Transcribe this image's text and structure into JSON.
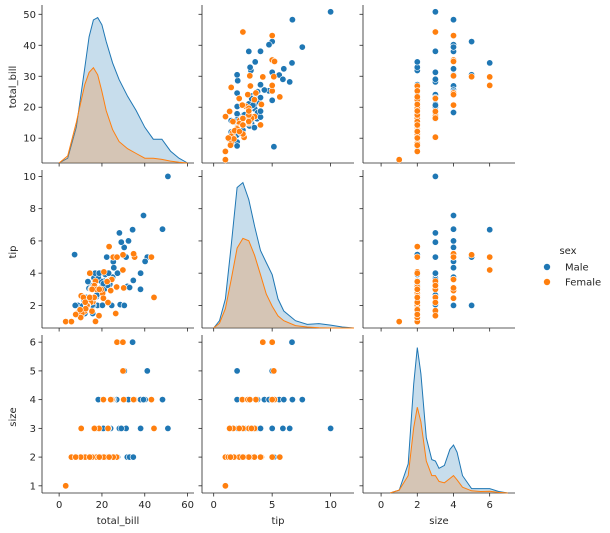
{
  "chart_data": {
    "type": "pairplot",
    "variables": [
      "total_bill",
      "tip",
      "size"
    ],
    "hue": "sex",
    "legend": {
      "title": "sex",
      "placement": "right",
      "entries": [
        {
          "label": "Male",
          "color": "#1f77b4"
        },
        {
          "label": "Female",
          "color": "#ff7f0e"
        }
      ]
    },
    "axes": {
      "total_bill": {
        "label": "total_bill",
        "range": [
          -8,
          63
        ],
        "ticks": [
          0,
          20,
          40,
          60
        ],
        "row_range": [
          2,
          53
        ],
        "row_ticks": [
          10,
          20,
          30,
          40,
          50
        ]
      },
      "tip": {
        "label": "tip",
        "range": [
          -1,
          12
        ],
        "ticks": [
          0,
          5,
          10
        ],
        "row_range": [
          0.6,
          10.4
        ],
        "row_ticks": [
          2,
          4,
          6,
          8,
          10
        ]
      },
      "size": {
        "label": "size",
        "range": [
          -1,
          7.4
        ],
        "ticks": [
          0,
          2,
          4,
          6
        ],
        "row_range": [
          0.75,
          6.25
        ],
        "row_ticks": [
          1,
          2,
          3,
          4,
          5,
          6
        ]
      }
    },
    "grid": false,
    "series": [
      {
        "name": "Male",
        "color": "#1f77b4",
        "points": [
          [
            10.34,
            1.66,
            3
          ],
          [
            21.01,
            3.5,
            3
          ],
          [
            23.68,
            3.31,
            2
          ],
          [
            25.29,
            4.71,
            4
          ],
          [
            8.77,
            2.0,
            2
          ],
          [
            26.88,
            3.12,
            4
          ],
          [
            15.04,
            1.96,
            2
          ],
          [
            14.78,
            3.23,
            2
          ],
          [
            10.27,
            1.71,
            2
          ],
          [
            15.42,
            1.57,
            2
          ],
          [
            18.43,
            3.0,
            4
          ],
          [
            21.58,
            3.92,
            2
          ],
          [
            16.29,
            3.71,
            3
          ],
          [
            17.46,
            2.54,
            2
          ],
          [
            13.94,
            3.06,
            2
          ],
          [
            9.68,
            1.32,
            2
          ],
          [
            30.4,
            5.6,
            4
          ],
          [
            18.29,
            3.0,
            2
          ],
          [
            22.23,
            5.0,
            2
          ],
          [
            32.4,
            6.0,
            4
          ],
          [
            28.55,
            2.05,
            3
          ],
          [
            18.04,
            3.0,
            2
          ],
          [
            12.54,
            2.5,
            2
          ],
          [
            9.94,
            1.56,
            2
          ],
          [
            25.56,
            4.34,
            4
          ],
          [
            19.49,
            3.51,
            2
          ],
          [
            38.01,
            3.0,
            4
          ],
          [
            11.24,
            1.76,
            2
          ],
          [
            48.27,
            6.73,
            4
          ],
          [
            20.29,
            3.21,
            2
          ],
          [
            13.81,
            2.0,
            2
          ],
          [
            11.02,
            1.98,
            2
          ],
          [
            18.29,
            3.76,
            4
          ],
          [
            17.59,
            2.64,
            3
          ],
          [
            20.08,
            3.15,
            3
          ],
          [
            16.0,
            2.0,
            2
          ],
          [
            31.85,
            3.18,
            2
          ],
          [
            16.82,
            4.0,
            2
          ],
          [
            32.9,
            3.11,
            2
          ],
          [
            17.89,
            2.0,
            2
          ],
          [
            14.48,
            2.0,
            2
          ],
          [
            34.63,
            3.55,
            2
          ],
          [
            34.81,
            5.2,
            4
          ],
          [
            9.55,
            1.45,
            2
          ],
          [
            19.44,
            3.0,
            2
          ],
          [
            20.69,
            2.45,
            4
          ],
          [
            24.55,
            2.0,
            4
          ],
          [
            25.0,
            3.75,
            4
          ],
          [
            15.69,
            1.5,
            2
          ],
          [
            13.42,
            3.48,
            2
          ],
          [
            20.23,
            2.01,
            2
          ],
          [
            15.95,
            2.0,
            2
          ],
          [
            50.81,
            10.0,
            3
          ],
          [
            15.81,
            3.16,
            2
          ],
          [
            7.25,
            5.15,
            2
          ],
          [
            31.27,
            5.0,
            3
          ],
          [
            38.07,
            4.0,
            3
          ],
          [
            12.03,
            1.5,
            2
          ],
          [
            21.07,
            3.0,
            2
          ],
          [
            16.27,
            2.5,
            2
          ],
          [
            7.51,
            2.0,
            2
          ],
          [
            24.06,
            3.6,
            3
          ],
          [
            13.51,
            2.0,
            2
          ],
          [
            18.71,
            4.0,
            3
          ],
          [
            23.1,
            4.0,
            3
          ],
          [
            11.69,
            2.31,
            2
          ],
          [
            12.66,
            2.5,
            2
          ],
          [
            28.17,
            6.5,
            3
          ],
          [
            24.59,
            3.61,
            4
          ],
          [
            30.46,
            2.0,
            5
          ],
          [
            35.26,
            5.0,
            4
          ],
          [
            15.48,
            2.02,
            2
          ],
          [
            34.3,
            6.7,
            6
          ],
          [
            41.19,
            5.0,
            5
          ],
          [
            16.99,
            1.01,
            2
          ],
          [
            40.17,
            4.73,
            4
          ],
          [
            27.28,
            4.0,
            2
          ],
          [
            22.49,
            3.5,
            2
          ],
          [
            22.75,
            3.25,
            2
          ],
          [
            20.65,
            3.35,
            3
          ],
          [
            39.42,
            7.58,
            4
          ],
          [
            44.3,
            2.5,
            3
          ],
          [
            29.03,
            5.92,
            3
          ]
        ]
      },
      {
        "name": "Female",
        "color": "#ff7f0e",
        "points": [
          [
            16.99,
            1.01,
            2
          ],
          [
            24.59,
            3.61,
            4
          ],
          [
            35.26,
            5.0,
            4
          ],
          [
            14.83,
            3.02,
            2
          ],
          [
            10.33,
            1.67,
            3
          ],
          [
            16.97,
            3.5,
            3
          ],
          [
            20.29,
            2.75,
            2
          ],
          [
            15.77,
            2.23,
            2
          ],
          [
            19.65,
            3.0,
            2
          ],
          [
            15.06,
            3.0,
            2
          ],
          [
            20.69,
            2.45,
            4
          ],
          [
            16.93,
            3.07,
            3
          ],
          [
            10.29,
            2.6,
            2
          ],
          [
            34.81,
            5.2,
            4
          ],
          [
            26.41,
            1.5,
            2
          ],
          [
            16.45,
            2.47,
            2
          ],
          [
            3.07,
            1.0,
            1
          ],
          [
            17.07,
            3.0,
            3
          ],
          [
            26.86,
            3.14,
            2
          ],
          [
            25.28,
            5.0,
            2
          ],
          [
            14.73,
            2.2,
            2
          ],
          [
            44.3,
            2.5,
            3
          ],
          [
            22.42,
            3.48,
            2
          ],
          [
            15.36,
            1.64,
            2
          ],
          [
            20.92,
            4.08,
            2
          ],
          [
            14.31,
            4.0,
            2
          ],
          [
            13.37,
            2.0,
            2
          ],
          [
            18.64,
            1.36,
            3
          ],
          [
            11.87,
            1.63,
            2
          ],
          [
            43.11,
            5.0,
            4
          ],
          [
            13.0,
            2.0,
            2
          ],
          [
            12.74,
            2.01,
            2
          ],
          [
            13.0,
            2.0,
            2
          ],
          [
            16.4,
            2.5,
            2
          ],
          [
            29.85,
            5.14,
            5
          ],
          [
            16.47,
            3.23,
            3
          ],
          [
            27.05,
            5.0,
            6
          ],
          [
            29.8,
            4.2,
            6
          ],
          [
            8.52,
            1.48,
            2
          ],
          [
            17.51,
            3.0,
            2
          ],
          [
            10.65,
            1.5,
            2
          ],
          [
            12.43,
            1.8,
            2
          ],
          [
            24.08,
            2.92,
            4
          ],
          [
            11.35,
            2.5,
            2
          ],
          [
            15.38,
            3.0,
            2
          ],
          [
            8.35,
            1.5,
            2
          ],
          [
            18.78,
            3.0,
            2
          ],
          [
            22.82,
            2.18,
            3
          ],
          [
            5.75,
            1.0,
            2
          ],
          [
            12.16,
            2.2,
            2
          ],
          [
            14.26,
            2.5,
            2
          ],
          [
            23.33,
            5.65,
            2
          ],
          [
            9.78,
            1.73,
            2
          ],
          [
            10.07,
            1.25,
            2
          ],
          [
            7.74,
            1.44,
            2
          ],
          [
            30.14,
            3.09,
            4
          ]
        ]
      }
    ],
    "kde": {
      "total_bill": {
        "x": [
          0,
          4,
          8,
          12,
          14,
          16,
          18,
          20,
          22,
          25,
          28,
          32,
          36,
          40,
          44,
          48,
          52,
          56,
          60
        ],
        "Male": [
          0.0,
          0.002,
          0.015,
          0.04,
          0.053,
          0.06,
          0.061,
          0.058,
          0.051,
          0.042,
          0.035,
          0.028,
          0.022,
          0.015,
          0.01,
          0.01,
          0.005,
          0.002,
          0.0
        ],
        "Female": [
          0.0,
          0.003,
          0.017,
          0.033,
          0.038,
          0.04,
          0.037,
          0.03,
          0.022,
          0.014,
          0.009,
          0.006,
          0.004,
          0.002,
          0.002,
          0.0015,
          0.0008,
          0.0003,
          0.0
        ]
      },
      "tip": {
        "x": [
          0,
          0.5,
          1,
          1.5,
          2,
          2.5,
          3,
          3.5,
          4,
          4.5,
          5,
          5.5,
          6,
          7,
          8,
          9,
          10,
          11,
          12
        ],
        "Male": [
          0.0,
          0.03,
          0.12,
          0.34,
          0.58,
          0.6,
          0.53,
          0.42,
          0.32,
          0.27,
          0.22,
          0.12,
          0.07,
          0.03,
          0.015,
          0.018,
          0.012,
          0.004,
          0.0
        ],
        "Female": [
          0.0,
          0.02,
          0.08,
          0.2,
          0.33,
          0.37,
          0.36,
          0.3,
          0.22,
          0.14,
          0.09,
          0.05,
          0.03,
          0.01,
          0.004,
          0.001,
          0.0,
          0.0,
          0.0
        ]
      },
      "size": {
        "x": [
          0.5,
          1,
          1.5,
          1.8,
          2,
          2.2,
          2.5,
          2.8,
          3,
          3.2,
          3.5,
          3.8,
          4,
          4.2,
          4.5,
          5,
          5.5,
          6,
          6.5,
          7
        ],
        "Male": [
          0.0,
          0.02,
          0.2,
          0.75,
          1.0,
          0.82,
          0.38,
          0.23,
          0.22,
          0.17,
          0.19,
          0.3,
          0.33,
          0.28,
          0.12,
          0.03,
          0.03,
          0.03,
          0.01,
          0.0
        ],
        "Female": [
          0.0,
          0.02,
          0.12,
          0.45,
          0.59,
          0.49,
          0.22,
          0.12,
          0.12,
          0.08,
          0.07,
          0.1,
          0.12,
          0.09,
          0.04,
          0.015,
          0.01,
          0.012,
          0.004,
          0.0
        ]
      }
    }
  }
}
